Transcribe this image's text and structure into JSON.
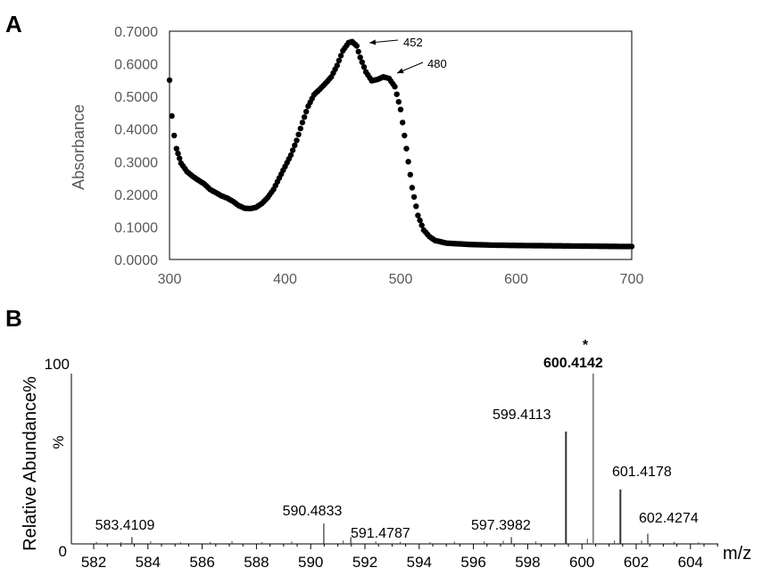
{
  "panels": {
    "a_label": "A",
    "b_label": "B"
  },
  "chart_data": [
    {
      "type": "scatter",
      "panel": "A",
      "title": "",
      "xlabel": "",
      "ylabel": "Absorbance",
      "xlim": [
        300,
        700
      ],
      "ylim": [
        0,
        0.7
      ],
      "x_ticks": [
        "300",
        "400",
        "500",
        "600",
        "700"
      ],
      "y_ticks": [
        "0.0000",
        "0.1000",
        "0.2000",
        "0.3000",
        "0.4000",
        "0.5000",
        "0.6000",
        "0.7000"
      ],
      "grid": false,
      "series_color": "#000000",
      "annotations": [
        {
          "text": "452",
          "x": 458,
          "y": 0.665
        },
        {
          "text": "480",
          "x": 485,
          "y": 0.56
        }
      ],
      "curve": [
        [
          300,
          0.55
        ],
        [
          302,
          0.44
        ],
        [
          304,
          0.38
        ],
        [
          306,
          0.34
        ],
        [
          310,
          0.295
        ],
        [
          315,
          0.27
        ],
        [
          320,
          0.255
        ],
        [
          325,
          0.243
        ],
        [
          330,
          0.232
        ],
        [
          335,
          0.215
        ],
        [
          340,
          0.205
        ],
        [
          345,
          0.195
        ],
        [
          350,
          0.188
        ],
        [
          355,
          0.178
        ],
        [
          360,
          0.165
        ],
        [
          365,
          0.157
        ],
        [
          370,
          0.156
        ],
        [
          375,
          0.16
        ],
        [
          380,
          0.172
        ],
        [
          385,
          0.19
        ],
        [
          390,
          0.215
        ],
        [
          395,
          0.25
        ],
        [
          400,
          0.285
        ],
        [
          405,
          0.32
        ],
        [
          410,
          0.365
        ],
        [
          415,
          0.42
        ],
        [
          420,
          0.47
        ],
        [
          425,
          0.505
        ],
        [
          430,
          0.522
        ],
        [
          435,
          0.54
        ],
        [
          440,
          0.56
        ],
        [
          445,
          0.595
        ],
        [
          450,
          0.64
        ],
        [
          455,
          0.665
        ],
        [
          458,
          0.668
        ],
        [
          462,
          0.655
        ],
        [
          465,
          0.62
        ],
        [
          470,
          0.575
        ],
        [
          475,
          0.548
        ],
        [
          480,
          0.552
        ],
        [
          485,
          0.56
        ],
        [
          490,
          0.555
        ],
        [
          495,
          0.53
        ],
        [
          500,
          0.46
        ],
        [
          505,
          0.34
        ],
        [
          510,
          0.22
        ],
        [
          515,
          0.135
        ],
        [
          520,
          0.09
        ],
        [
          525,
          0.07
        ],
        [
          530,
          0.058
        ],
        [
          540,
          0.05
        ],
        [
          560,
          0.046
        ],
        [
          580,
          0.044
        ],
        [
          600,
          0.043
        ],
        [
          630,
          0.042
        ],
        [
          660,
          0.041
        ],
        [
          690,
          0.04
        ],
        [
          700,
          0.04
        ]
      ]
    },
    {
      "type": "bar",
      "panel": "B",
      "title": "",
      "xlabel": "m/z",
      "ylabel": "Relative Abundance%",
      "ylabel_secondary": "%",
      "xlim": [
        581.5,
        605.2
      ],
      "ylim": [
        0,
        100
      ],
      "y_top_label": "100",
      "y_zero_label": "0",
      "x_ticks": [
        "582",
        "584",
        "586",
        "588",
        "590",
        "592",
        "594",
        "596",
        "598",
        "600",
        "602",
        "604"
      ],
      "grid": false,
      "marker": "*",
      "labeled_peaks": [
        {
          "mz": 583.4109,
          "rel": 4,
          "label": "583.4109",
          "bold": false
        },
        {
          "mz": 590.4833,
          "rel": 12,
          "label": "590.4833",
          "bold": false
        },
        {
          "mz": 591.4787,
          "rel": 4,
          "label": "591.4787",
          "bold": false
        },
        {
          "mz": 597.3982,
          "rel": 4,
          "label": "597.3982",
          "bold": false
        },
        {
          "mz": 599.4113,
          "rel": 66,
          "label": "599.4113",
          "bold": false
        },
        {
          "mz": 600.4142,
          "rel": 100,
          "label": "600.4142",
          "bold": true
        },
        {
          "mz": 601.4178,
          "rel": 32,
          "label": "601.4178",
          "bold": false
        },
        {
          "mz": 602.4274,
          "rel": 6,
          "label": "602.4274",
          "bold": false
        }
      ],
      "minor_peaks": [
        {
          "mz": 582.1,
          "rel": 1.2
        },
        {
          "mz": 583.0,
          "rel": 1
        },
        {
          "mz": 584.1,
          "rel": 1.5
        },
        {
          "mz": 585.2,
          "rel": 1
        },
        {
          "mz": 586.3,
          "rel": 1.2
        },
        {
          "mz": 587.1,
          "rel": 1.6
        },
        {
          "mz": 588.2,
          "rel": 1
        },
        {
          "mz": 589.3,
          "rel": 1.4
        },
        {
          "mz": 591.2,
          "rel": 2
        },
        {
          "mz": 592.4,
          "rel": 1.5
        },
        {
          "mz": 593.3,
          "rel": 1.2
        },
        {
          "mz": 594.4,
          "rel": 1
        },
        {
          "mz": 595.3,
          "rel": 1.3
        },
        {
          "mz": 596.4,
          "rel": 1.5
        },
        {
          "mz": 597.1,
          "rel": 1.8
        },
        {
          "mz": 598.3,
          "rel": 1.4
        },
        {
          "mz": 600.2,
          "rel": 3
        },
        {
          "mz": 601.2,
          "rel": 2
        },
        {
          "mz": 602.2,
          "rel": 2
        },
        {
          "mz": 603.4,
          "rel": 1.2
        },
        {
          "mz": 604.3,
          "rel": 1
        }
      ]
    }
  ]
}
